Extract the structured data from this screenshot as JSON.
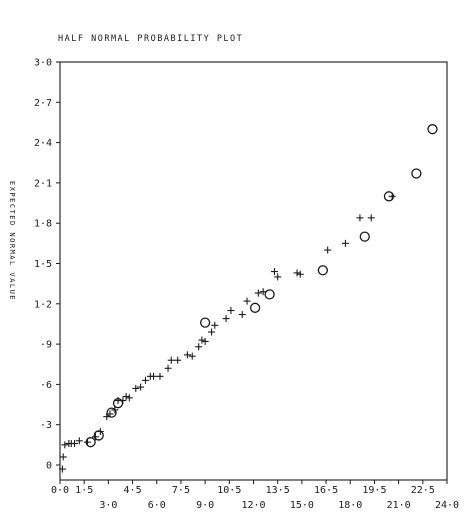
{
  "chart_data": {
    "type": "scatter",
    "title": "HALF NORMAL PROBABILITY PLOT",
    "xlabel": "",
    "ylabel": "EXPECTED NORMAL VALUE",
    "xlim": [
      0,
      24
    ],
    "ylim": [
      0,
      3.0
    ],
    "grid": false,
    "legend": "none",
    "x_ticks_top": [
      "0·0",
      "1·5",
      "4·5",
      "7·5",
      "10·5",
      "13·5",
      "16·5",
      "19·5",
      "22·5"
    ],
    "x_ticks_bottom": [
      "3·0",
      "6·0",
      "9·0",
      "12·0",
      "15·0",
      "18·0",
      "21·0",
      "24·0"
    ],
    "y_ticks": [
      "0",
      "·3",
      "·6",
      "·9",
      "1·2",
      "1·5",
      "1·8",
      "2·1",
      "2·4",
      "2·7",
      "3·0"
    ],
    "series": [
      {
        "marker": "plus",
        "x": [
          0.15,
          0.2,
          0.3,
          0.55,
          0.7,
          0.9,
          1.2,
          1.7,
          2.2,
          2.5,
          2.9,
          3.1,
          3.4,
          3.6,
          3.9,
          4.1,
          4.3,
          4.7,
          5.0,
          5.3,
          5.6,
          5.8,
          6.2,
          6.7,
          6.9,
          7.3,
          7.9,
          8.2,
          8.6,
          8.8,
          9.0,
          9.4,
          9.6,
          10.3,
          10.6,
          11.3,
          11.6,
          12.3,
          12.6,
          13.3,
          13.5,
          14.7,
          14.9,
          16.6,
          17.7,
          18.6,
          19.3,
          20.6
        ],
        "y": [
          -0.03,
          0.06,
          0.15,
          0.16,
          0.16,
          0.16,
          0.18,
          0.17,
          0.21,
          0.25,
          0.36,
          0.38,
          0.41,
          0.48,
          0.48,
          0.51,
          0.5,
          0.57,
          0.58,
          0.63,
          0.66,
          0.66,
          0.66,
          0.72,
          0.78,
          0.78,
          0.82,
          0.81,
          0.88,
          0.93,
          0.92,
          0.99,
          1.04,
          1.09,
          1.15,
          1.12,
          1.22,
          1.28,
          1.29,
          1.44,
          1.4,
          1.43,
          1.42,
          1.6,
          1.65,
          1.84,
          1.84,
          2.0
        ]
      },
      {
        "marker": "circle",
        "x": [
          1.9,
          2.4,
          3.2,
          3.6,
          9.0,
          12.1,
          13.0,
          16.3,
          18.9,
          20.4,
          22.1,
          23.1
        ],
        "y": [
          0.17,
          0.22,
          0.39,
          0.46,
          1.06,
          1.17,
          1.27,
          1.45,
          1.7,
          2.0,
          2.17,
          2.5
        ]
      }
    ]
  }
}
